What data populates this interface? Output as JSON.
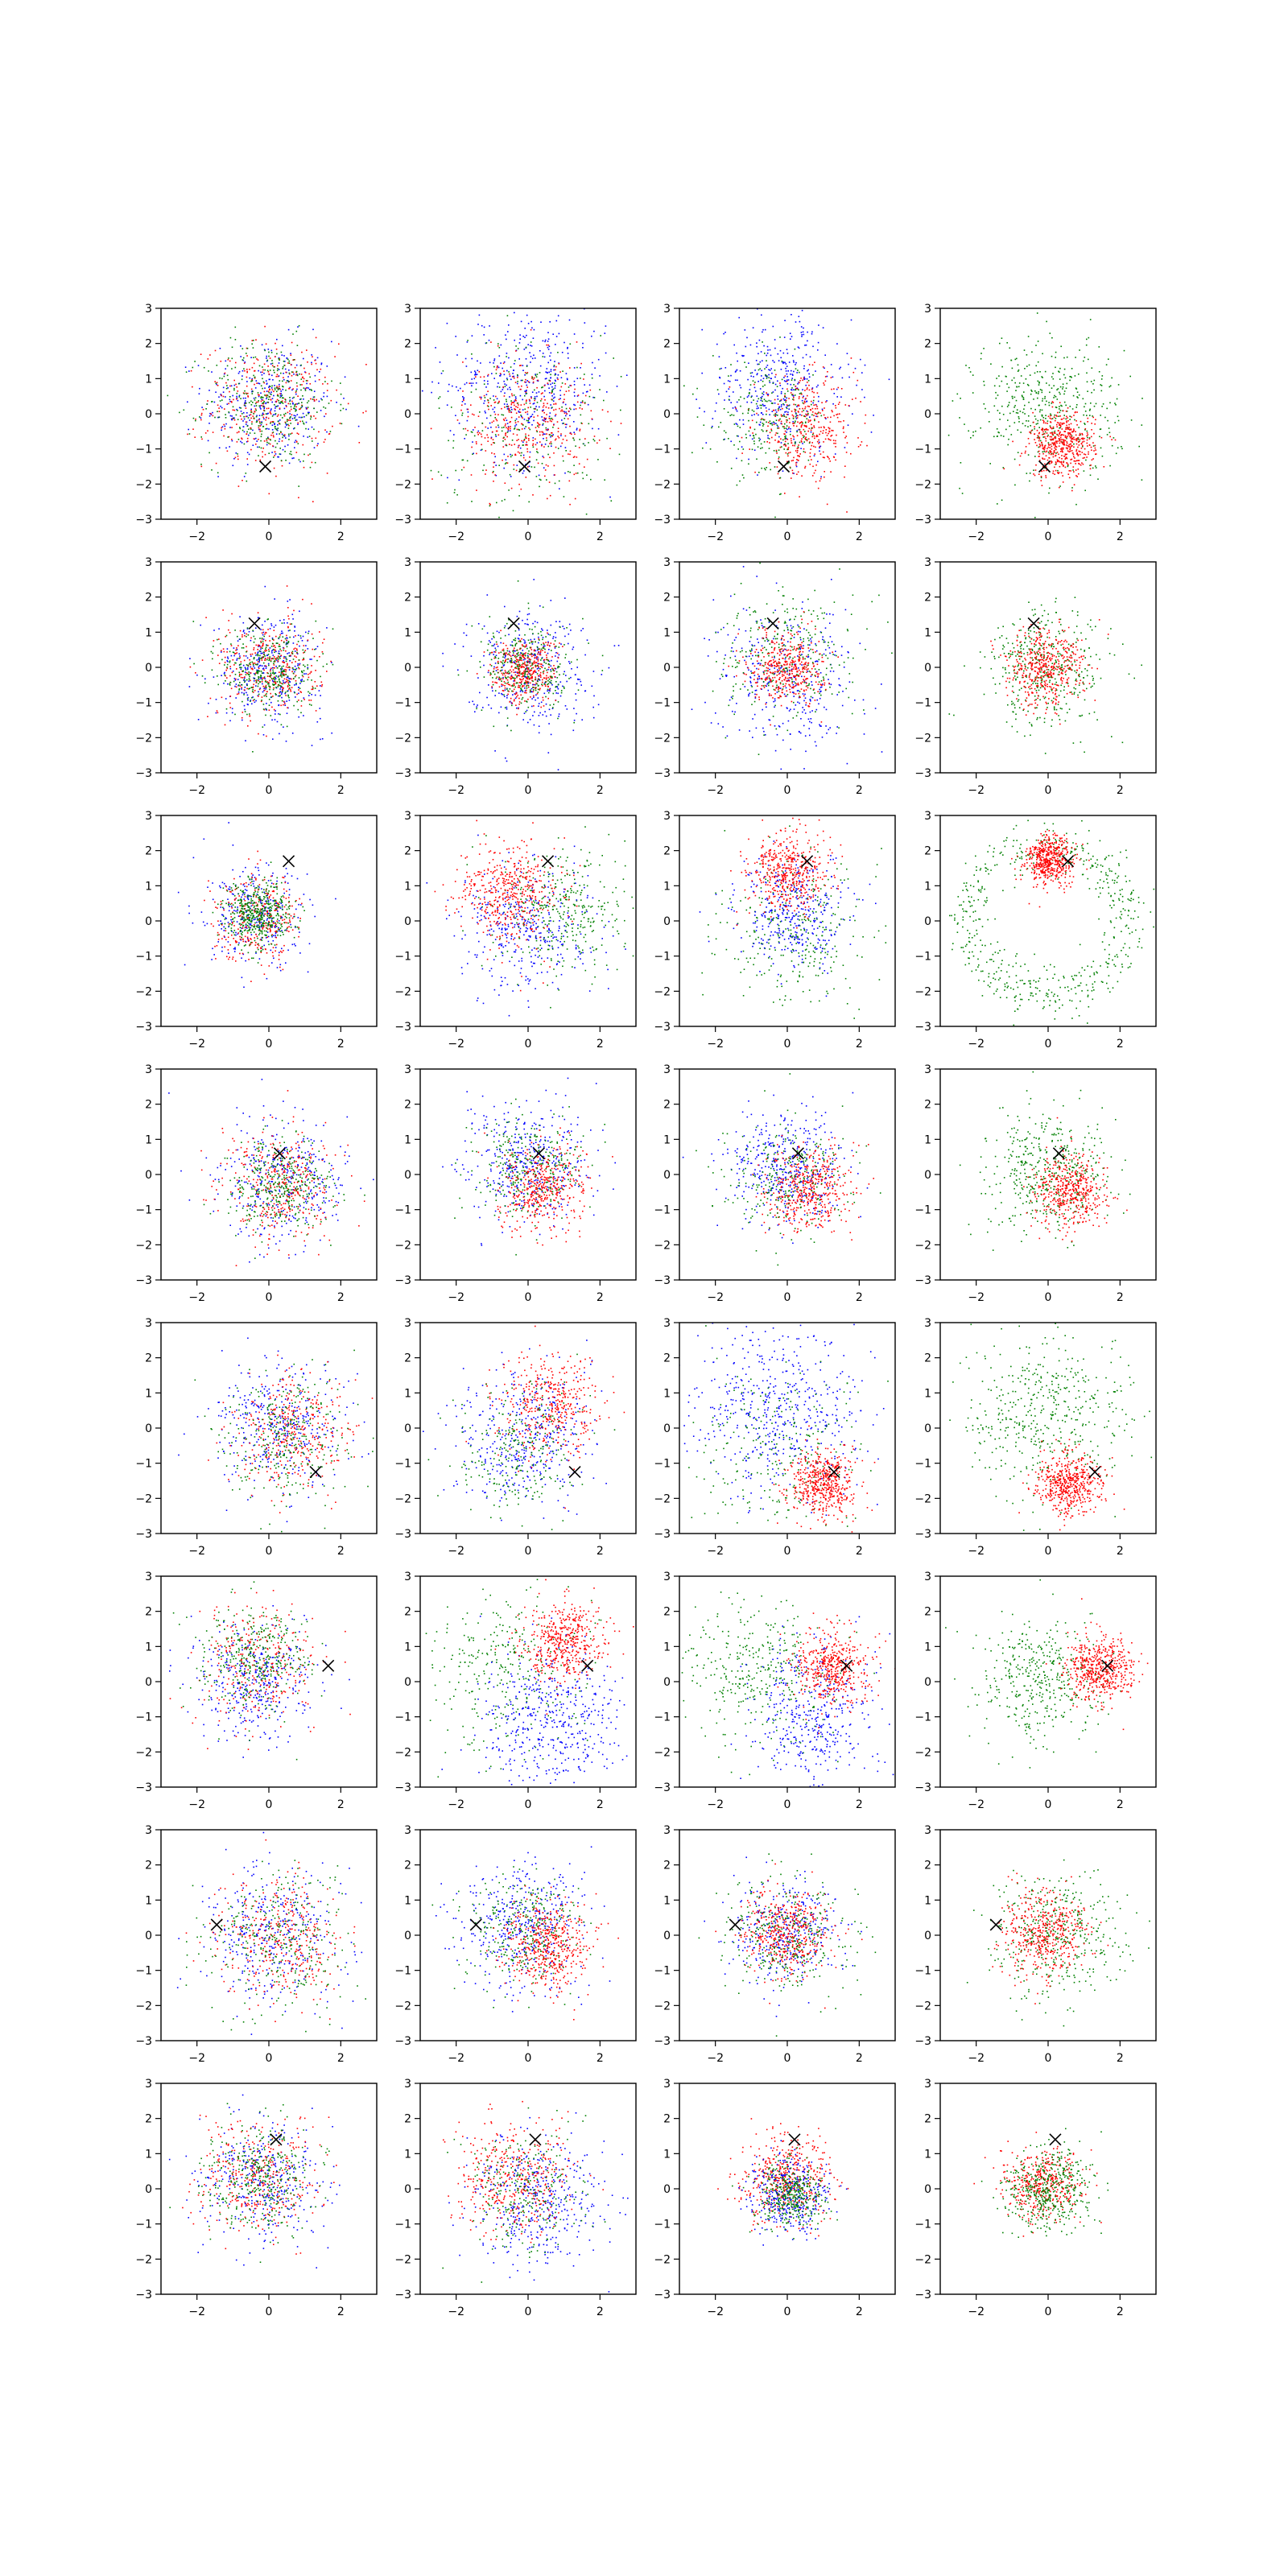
{
  "figure": {
    "rows": 8,
    "cols": 4,
    "background": "#ffffff"
  },
  "chart_data": {
    "type": "scatter",
    "xlim": [
      -3,
      3
    ],
    "ylim": [
      -3,
      3
    ],
    "xticks": [
      -2,
      0,
      2
    ],
    "yticks": [
      -3,
      -2,
      -1,
      0,
      1,
      2,
      3
    ],
    "xtick_labels": [
      "−2",
      "0",
      "2"
    ],
    "ytick_labels": [
      "−3",
      "−2",
      "−1",
      "0",
      "1",
      "2",
      "3"
    ],
    "grid": false,
    "legend": "none",
    "point_colors": [
      "#0000ff",
      "#ff0000",
      "#008000"
    ],
    "marker_color": "#000000",
    "marker_symbol": "x",
    "rows": [
      {
        "marker": [
          -0.1,
          -1.5
        ],
        "panels": [
          [
            {
              "c": "#0000ff",
              "cx": 0,
              "cy": 0.3,
              "s": 0.9,
              "n": 350
            },
            {
              "c": "#ff0000",
              "cx": 0,
              "cy": 0.2,
              "s": 0.9,
              "n": 350
            },
            {
              "c": "#008000",
              "cx": 0,
              "cy": 0.3,
              "s": 0.9,
              "n": 350
            }
          ],
          [
            {
              "c": "#0000ff",
              "cx": 0,
              "cy": 0.8,
              "s": 1.1,
              "n": 450
            },
            {
              "c": "#ff0000",
              "cx": 0,
              "cy": -0.2,
              "s": 0.9,
              "n": 400
            },
            {
              "c": "#008000",
              "cx": 0,
              "cy": -0.3,
              "s": 1.3,
              "n": 250
            }
          ],
          [
            {
              "c": "#0000ff",
              "cx": -0.2,
              "cy": 0.8,
              "s": 1.0,
              "n": 400
            },
            {
              "c": "#ff0000",
              "cx": 0.5,
              "cy": -0.4,
              "s": 0.7,
              "n": 400
            },
            {
              "c": "#008000",
              "cx": -0.5,
              "cy": -0.2,
              "s": 0.8,
              "n": 250
            }
          ],
          [
            {
              "c": "#008000",
              "cx": 0,
              "cy": 0.2,
              "s": 1.0,
              "n": 450
            },
            {
              "c": "#ff0000",
              "cx": 0.4,
              "cy": -0.9,
              "s": 0.45,
              "n": 500
            }
          ]
        ]
      },
      {
        "marker": [
          -0.4,
          1.25
        ],
        "panels": [
          [
            {
              "c": "#0000ff",
              "cx": 0,
              "cy": 0,
              "s": 0.75,
              "n": 350
            },
            {
              "c": "#ff0000",
              "cx": 0,
              "cy": 0,
              "s": 0.7,
              "n": 350
            },
            {
              "c": "#008000",
              "cx": 0,
              "cy": -0.1,
              "s": 0.65,
              "n": 350
            }
          ],
          [
            {
              "c": "#0000ff",
              "cx": 0,
              "cy": 0,
              "s": 0.85,
              "n": 350
            },
            {
              "c": "#ff0000",
              "cx": -0.1,
              "cy": -0.1,
              "s": 0.45,
              "n": 400
            },
            {
              "c": "#008000",
              "cx": 0,
              "cy": 0,
              "s": 0.65,
              "n": 300
            }
          ],
          [
            {
              "c": "#0000ff",
              "cx": 0,
              "cy": -0.3,
              "s": 1.0,
              "n": 350
            },
            {
              "c": "#008000",
              "cx": 0,
              "cy": 0.3,
              "s": 0.9,
              "n": 300
            },
            {
              "c": "#ff0000",
              "cx": 0,
              "cy": 0,
              "s": 0.5,
              "n": 400
            }
          ],
          [
            {
              "c": "#008000",
              "cx": 0,
              "cy": 0,
              "s": 0.85,
              "n": 400
            },
            {
              "c": "#ff0000",
              "cx": -0.1,
              "cy": 0,
              "s": 0.55,
              "n": 450
            }
          ]
        ]
      },
      {
        "marker": [
          0.55,
          1.7
        ],
        "panels": [
          [
            {
              "c": "#0000ff",
              "cx": -0.3,
              "cy": 0.1,
              "s": 0.7,
              "n": 300
            },
            {
              "c": "#ff0000",
              "cx": -0.3,
              "cy": 0.1,
              "s": 0.6,
              "n": 300
            },
            {
              "c": "#008000",
              "cx": -0.3,
              "cy": 0.2,
              "s": 0.45,
              "n": 450
            }
          ],
          [
            {
              "c": "#008000",
              "cx": 1.0,
              "cy": 0.3,
              "s": 0.9,
              "n": 350
            },
            {
              "c": "#0000ff",
              "cx": 0,
              "cy": -0.2,
              "s": 0.9,
              "n": 350
            },
            {
              "c": "#ff0000",
              "cx": -0.5,
              "cy": 0.8,
              "s": 0.7,
              "n": 450
            }
          ],
          [
            {
              "c": "#008000",
              "cx": 0.2,
              "cy": -0.3,
              "s": 1.0,
              "n": 300
            },
            {
              "c": "#0000ff",
              "cx": 0.2,
              "cy": 0.2,
              "s": 0.75,
              "n": 350
            },
            {
              "c": "#ff0000",
              "cx": 0,
              "cy": 1.4,
              "s": 0.55,
              "n": 450
            }
          ],
          [
            {
              "c": "#008000",
              "ring": true,
              "cx": 0,
              "cy": 0,
              "r": 2.2,
              "s": 0.35,
              "n": 550
            },
            {
              "c": "#ff0000",
              "cx": 0,
              "cy": 1.7,
              "s": 0.35,
              "n": 500
            }
          ]
        ]
      },
      {
        "marker": [
          0.3,
          0.6
        ],
        "panels": [
          [
            {
              "c": "#0000ff",
              "cx": 0.3,
              "cy": -0.1,
              "s": 0.9,
              "n": 350
            },
            {
              "c": "#ff0000",
              "cx": 0.3,
              "cy": -0.3,
              "s": 0.8,
              "n": 350
            },
            {
              "c": "#008000",
              "cx": 0.3,
              "cy": -0.3,
              "s": 0.7,
              "n": 350
            }
          ],
          [
            {
              "c": "#0000ff",
              "cx": 0,
              "cy": 0.4,
              "s": 0.85,
              "n": 400
            },
            {
              "c": "#008000",
              "cx": 0,
              "cy": 0.2,
              "s": 0.7,
              "n": 300
            },
            {
              "c": "#ff0000",
              "cx": 0.4,
              "cy": -0.4,
              "s": 0.6,
              "n": 400
            }
          ],
          [
            {
              "c": "#0000ff",
              "cx": 0,
              "cy": 0.2,
              "s": 0.8,
              "n": 400
            },
            {
              "c": "#ff0000",
              "cx": 0.6,
              "cy": -0.4,
              "s": 0.6,
              "n": 450
            },
            {
              "c": "#008000",
              "cx": 0,
              "cy": 0,
              "s": 0.85,
              "n": 250
            }
          ],
          [
            {
              "c": "#008000",
              "cx": 0,
              "cy": 0,
              "s": 0.85,
              "n": 450
            },
            {
              "c": "#ff0000",
              "cx": 0.6,
              "cy": -0.5,
              "s": 0.5,
              "n": 450
            }
          ]
        ]
      },
      {
        "marker": [
          1.3,
          -1.25
        ],
        "panels": [
          [
            {
              "c": "#0000ff",
              "cx": 0.3,
              "cy": 0.1,
              "s": 0.9,
              "n": 350
            },
            {
              "c": "#ff0000",
              "cx": 0.6,
              "cy": -0.2,
              "s": 0.8,
              "n": 350
            },
            {
              "c": "#008000",
              "cx": 0.5,
              "cy": -0.3,
              "s": 0.9,
              "n": 300
            }
          ],
          [
            {
              "c": "#0000ff",
              "cx": -0.2,
              "cy": -0.2,
              "s": 1.0,
              "n": 400
            },
            {
              "c": "#ff0000",
              "cx": 0.6,
              "cy": 0.6,
              "s": 0.7,
              "n": 400
            },
            {
              "c": "#008000",
              "cx": -0.4,
              "cy": -0.6,
              "s": 0.9,
              "n": 250
            }
          ],
          [
            {
              "c": "#0000ff",
              "cx": -0.3,
              "cy": 0.5,
              "s": 1.2,
              "n": 500
            },
            {
              "c": "#008000",
              "cx": -0.3,
              "cy": -0.6,
              "s": 1.2,
              "n": 250
            },
            {
              "c": "#ff0000",
              "cx": 1.0,
              "cy": -1.6,
              "s": 0.45,
              "n": 500
            }
          ],
          [
            {
              "c": "#008000",
              "cx": 0,
              "cy": 0.4,
              "s": 1.1,
              "n": 450
            },
            {
              "c": "#ff0000",
              "cx": 0.6,
              "cy": -1.6,
              "s": 0.45,
              "n": 500
            }
          ]
        ]
      },
      {
        "marker": [
          1.65,
          0.45
        ],
        "panels": [
          [
            {
              "c": "#0000ff",
              "cx": -0.4,
              "cy": 0.0,
              "s": 0.8,
              "n": 350
            },
            {
              "c": "#ff0000",
              "cx": -0.3,
              "cy": 0.5,
              "s": 0.8,
              "n": 300
            },
            {
              "c": "#008000",
              "cx": -0.4,
              "cy": 0.7,
              "s": 0.75,
              "n": 350
            }
          ],
          [
            {
              "c": "#008000",
              "cx": -0.6,
              "cy": 0.4,
              "s": 1.1,
              "n": 300
            },
            {
              "c": "#0000ff",
              "cx": 0.6,
              "cy": -1.1,
              "s": 1.0,
              "n": 450
            },
            {
              "c": "#ff0000",
              "cx": 1.0,
              "cy": 1.1,
              "s": 0.55,
              "n": 450
            }
          ],
          [
            {
              "c": "#008000",
              "cx": -0.8,
              "cy": 0.3,
              "s": 1.0,
              "n": 350
            },
            {
              "c": "#0000ff",
              "cx": 0.8,
              "cy": -0.9,
              "s": 1.0,
              "n": 400
            },
            {
              "c": "#ff0000",
              "cx": 1.2,
              "cy": 0.4,
              "s": 0.5,
              "n": 450
            }
          ],
          [
            {
              "c": "#008000",
              "cx": -0.3,
              "cy": 0,
              "s": 0.85,
              "n": 400
            },
            {
              "c": "#ff0000",
              "cx": 1.4,
              "cy": 0.4,
              "s": 0.45,
              "n": 500
            }
          ]
        ]
      },
      {
        "marker": [
          -1.45,
          0.3
        ],
        "panels": [
          [
            {
              "c": "#0000ff",
              "cx": 0,
              "cy": 0.1,
              "s": 1.0,
              "n": 350
            },
            {
              "c": "#ff0000",
              "cx": 0.3,
              "cy": -0.1,
              "s": 0.9,
              "n": 350
            },
            {
              "c": "#008000",
              "cx": 0.3,
              "cy": -0.1,
              "s": 1.0,
              "n": 300
            }
          ],
          [
            {
              "c": "#0000ff",
              "cx": -0.1,
              "cy": 0.3,
              "s": 0.9,
              "n": 400
            },
            {
              "c": "#008000",
              "cx": -0.2,
              "cy": 0.1,
              "s": 0.8,
              "n": 300
            },
            {
              "c": "#ff0000",
              "cx": 0.6,
              "cy": -0.3,
              "s": 0.6,
              "n": 450
            }
          ],
          [
            {
              "c": "#0000ff",
              "cx": 0,
              "cy": 0.1,
              "s": 0.75,
              "n": 350
            },
            {
              "c": "#ff0000",
              "cx": 0,
              "cy": 0.1,
              "s": 0.6,
              "n": 450
            },
            {
              "c": "#008000",
              "cx": 0,
              "cy": 0,
              "s": 0.9,
              "n": 300
            }
          ],
          [
            {
              "c": "#008000",
              "cx": 0.2,
              "cy": -0.1,
              "s": 0.9,
              "n": 400
            },
            {
              "c": "#ff0000",
              "cx": -0.1,
              "cy": 0.1,
              "s": 0.6,
              "n": 450
            }
          ]
        ]
      },
      {
        "marker": [
          0.2,
          1.4
        ],
        "panels": [
          [
            {
              "c": "#0000ff",
              "cx": -0.2,
              "cy": 0.2,
              "s": 0.85,
              "n": 350
            },
            {
              "c": "#ff0000",
              "cx": -0.3,
              "cy": 0.4,
              "s": 0.8,
              "n": 350
            },
            {
              "c": "#008000",
              "cx": -0.2,
              "cy": 0.3,
              "s": 0.75,
              "n": 350
            }
          ],
          [
            {
              "c": "#0000ff",
              "cx": 0.4,
              "cy": -0.4,
              "s": 0.9,
              "n": 400
            },
            {
              "c": "#ff0000",
              "cx": -0.4,
              "cy": 0.3,
              "s": 0.8,
              "n": 400
            },
            {
              "c": "#008000",
              "cx": 0,
              "cy": 0,
              "s": 0.8,
              "n": 250
            }
          ],
          [
            {
              "c": "#ff0000",
              "cx": 0,
              "cy": 0.3,
              "s": 0.6,
              "n": 450
            },
            {
              "c": "#0000ff",
              "cx": 0,
              "cy": -0.2,
              "s": 0.55,
              "n": 350
            },
            {
              "c": "#008000",
              "cx": 0.1,
              "cy": -0.2,
              "s": 0.45,
              "n": 350
            }
          ],
          [
            {
              "c": "#ff0000",
              "cx": -0.2,
              "cy": 0.1,
              "s": 0.55,
              "n": 400
            },
            {
              "c": "#008000",
              "cx": 0,
              "cy": 0,
              "s": 0.55,
              "n": 450
            }
          ]
        ]
      }
    ]
  }
}
